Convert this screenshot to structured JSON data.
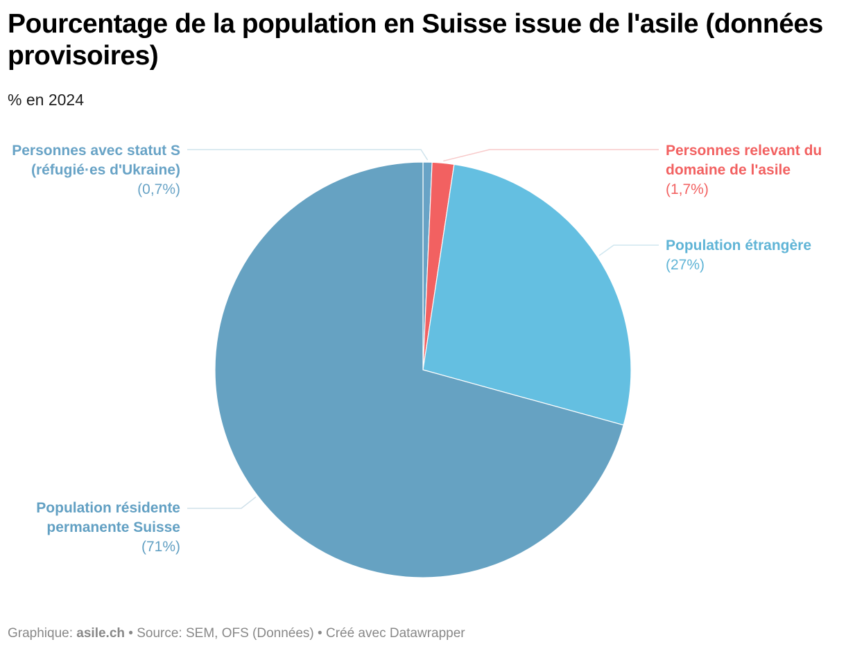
{
  "header": {
    "title": "Pourcentage de la population en Suisse issue de l'asile (données provisoires)",
    "subtitle": "% en 2024"
  },
  "footer": {
    "prefix": "Graphique: ",
    "author": "asile.ch",
    "rest": " • Source: SEM, OFS (Données) • Créé avec Datawrapper"
  },
  "chart_data": {
    "type": "pie",
    "start_angle_deg": 0,
    "direction": "clockwise",
    "slices": [
      {
        "name": "Personnes avec statut S (réfugié·es d'Ukraine)",
        "value": 0.7,
        "label_pct": "(0,7%)",
        "color": "#68a3c6"
      },
      {
        "name": "Personnes relevant du domaine de l'asile",
        "value": 1.7,
        "label_pct": "(1,7%)",
        "color": "#f26161"
      },
      {
        "name": "Population étrangère",
        "value": 27,
        "label_pct": "(27%)",
        "color": "#64bfe1"
      },
      {
        "name": "Population résidente permanente Suisse",
        "value": 71,
        "label_pct": "(71%)",
        "color": "#66a2c2"
      }
    ],
    "label_colors": {
      "statut_s": "#68a3c6",
      "asile": "#f26161",
      "etrangere": "#5fb4d6",
      "suisse": "#62a0c3"
    }
  }
}
